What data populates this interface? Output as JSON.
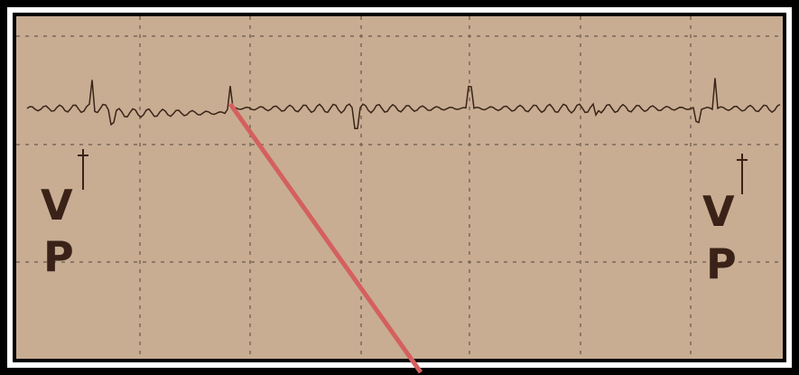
{
  "labels": [
    {
      "top": "V",
      "bottom": "P"
    },
    {
      "top": "V",
      "bottom": "P"
    }
  ]
}
